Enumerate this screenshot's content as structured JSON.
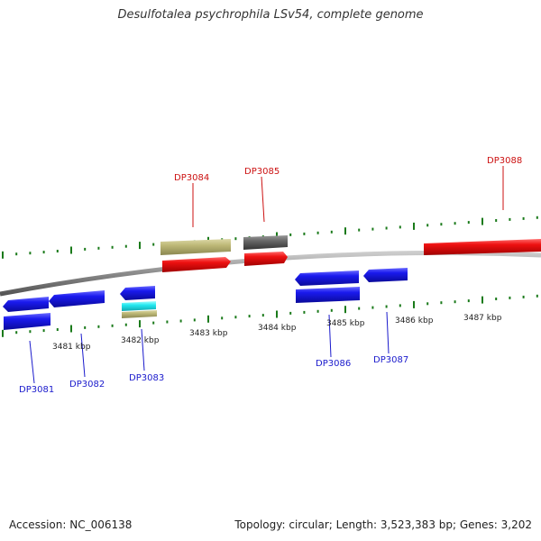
{
  "title": "Desulfotalea psychrophila LSv54, complete genome",
  "footer": {
    "accession": "Accession: NC_006138",
    "summary": "Topology: circular; Length: 3,523,383 bp; Genes: 3,202"
  },
  "colors": {
    "gene_blue": "#1a1aee",
    "gene_red": "#ee1111",
    "gene_khaki": "#bdb876",
    "gene_gray": "#666666",
    "gene_cyan": "#22e8f0",
    "label_blue": "#1a1acc",
    "label_red": "#cc1111",
    "tick_green": "#1a7a1a",
    "backbone": "#8a8a8a"
  },
  "kbp_labels": [
    "3481 kbp",
    "3482 kbp",
    "3483 kbp",
    "3484 kbp",
    "3485 kbp",
    "3486 kbp",
    "3487 kbp"
  ],
  "gene_labels": {
    "top": [
      "DP3084",
      "DP3085",
      "DP3088"
    ],
    "bottom": [
      "DP3081",
      "DP3082",
      "DP3083",
      "DP3086",
      "DP3087"
    ]
  }
}
